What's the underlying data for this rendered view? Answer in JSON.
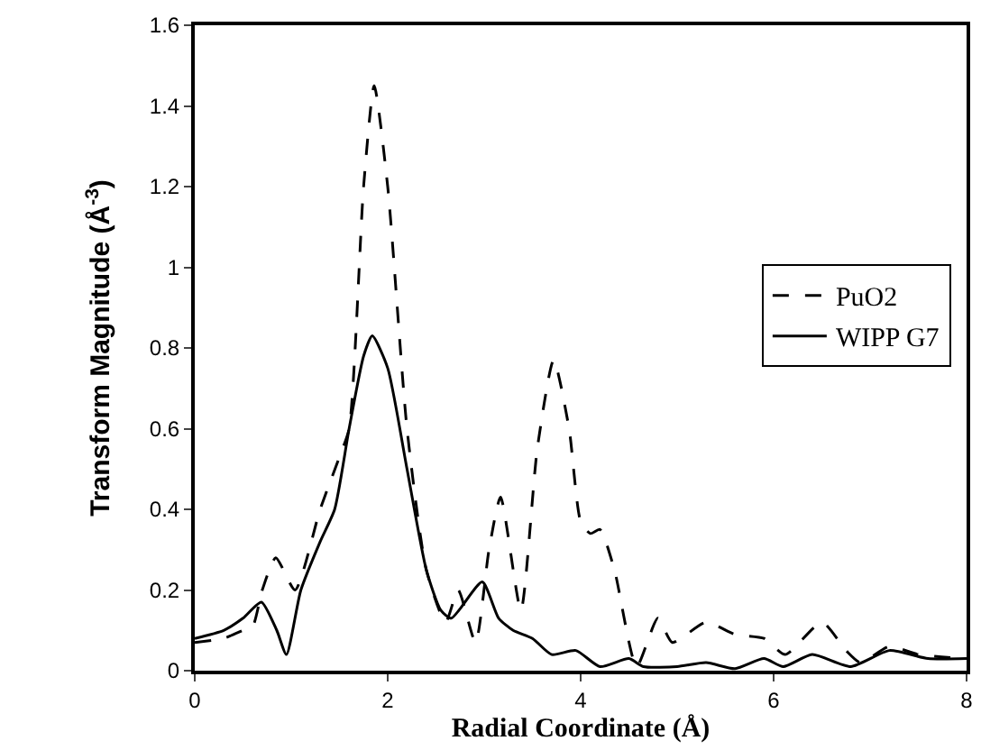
{
  "chart_data": {
    "type": "line",
    "xlabel": "Radial Coordinate (Å)",
    "ylabel": "Transform Magnitude (Å$^{-3}$)",
    "xlim": [
      0,
      8
    ],
    "xticks": [
      0,
      2,
      4,
      6,
      8
    ],
    "ylim": [
      0,
      1.6
    ],
    "yticks": [
      0,
      0.2,
      0.4,
      0.6,
      0.8,
      1,
      1.2,
      1.4,
      1.6
    ],
    "legend": "right",
    "marker": "none",
    "series": [
      {
        "name": "PuO2",
        "color": "#000000",
        "line_style": "dashed",
        "x": [
          0,
          0.3,
          0.5,
          0.6,
          0.7,
          0.84,
          1.04,
          1.3,
          1.5,
          1.6,
          1.75,
          1.86,
          2.0,
          2.2,
          2.4,
          2.6,
          2.73,
          2.91,
          3.05,
          3.17,
          3.38,
          3.55,
          3.72,
          3.88,
          4.0,
          4.1,
          4.2,
          4.35,
          4.58,
          4.8,
          4.95,
          5.3,
          5.6,
          5.9,
          6.12,
          6.5,
          6.75,
          6.9,
          7.2,
          7.5,
          8
        ],
        "values": [
          0.07,
          0.08,
          0.1,
          0.11,
          0.2,
          0.28,
          0.2,
          0.4,
          0.53,
          0.6,
          1.2,
          1.45,
          1.2,
          0.6,
          0.25,
          0.12,
          0.2,
          0.07,
          0.3,
          0.43,
          0.15,
          0.55,
          0.77,
          0.6,
          0.37,
          0.34,
          0.35,
          0.25,
          0.01,
          0.13,
          0.07,
          0.12,
          0.09,
          0.08,
          0.04,
          0.12,
          0.05,
          0.02,
          0.06,
          0.04,
          0.03
        ]
      },
      {
        "name": "WIPP G7",
        "color": "#000000",
        "line_style": "solid",
        "x": [
          0,
          0.3,
          0.5,
          0.69,
          0.85,
          0.95,
          1.1,
          1.3,
          1.45,
          1.6,
          1.75,
          1.84,
          2.0,
          2.2,
          2.4,
          2.55,
          2.66,
          2.98,
          3.15,
          3.3,
          3.5,
          3.7,
          3.95,
          4.2,
          4.5,
          4.65,
          5.0,
          5.3,
          5.6,
          5.9,
          6.1,
          6.4,
          6.8,
          7.2,
          7.6,
          8
        ],
        "values": [
          0.08,
          0.1,
          0.13,
          0.17,
          0.1,
          0.04,
          0.2,
          0.32,
          0.4,
          0.6,
          0.78,
          0.83,
          0.75,
          0.5,
          0.25,
          0.15,
          0.13,
          0.22,
          0.13,
          0.1,
          0.08,
          0.04,
          0.05,
          0.01,
          0.03,
          0.01,
          0.01,
          0.02,
          0.005,
          0.03,
          0.01,
          0.04,
          0.01,
          0.05,
          0.03,
          0.03
        ]
      }
    ]
  }
}
